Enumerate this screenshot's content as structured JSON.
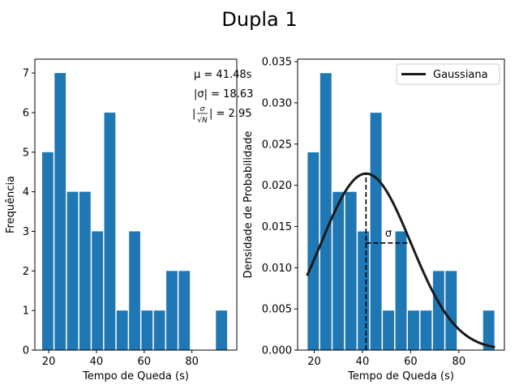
{
  "figure": {
    "suptitle": "Dupla 1"
  },
  "chart_data": [
    {
      "type": "bar",
      "bar_color": "#1f77b4",
      "xlabel": "Tempo de Queda (s)",
      "ylabel": "Frequência",
      "xlim": [
        14.2,
        98.8
      ],
      "ylim": [
        0,
        7.35
      ],
      "xticks": [
        20,
        40,
        60,
        80
      ],
      "yticks": [
        0,
        1,
        2,
        3,
        4,
        5,
        6,
        7
      ],
      "bin_edges": [
        17.0,
        22.2,
        27.4,
        32.6,
        37.8,
        43.0,
        48.2,
        53.4,
        58.6,
        63.8,
        69.0,
        74.2,
        79.4,
        84.6,
        89.8,
        95.0
      ],
      "values": [
        5,
        7,
        4,
        4,
        3,
        6,
        1,
        3,
        1,
        1,
        2,
        2,
        0,
        0,
        1
      ],
      "annotations": [
        {
          "text": "μ = 41.48s"
        },
        {
          "text": "|σ| = 18.63"
        },
        {
          "text_prefix": "|",
          "frac_num": "σ",
          "frac_den": "√N",
          "text_suffix": "| = 2.95"
        }
      ]
    },
    {
      "type": "bar",
      "bar_color": "#1f77b4",
      "xlabel": "Tempo de Queda (s)",
      "ylabel": "Densidade de Probabilidade",
      "xlim": [
        13.1,
        98.9
      ],
      "ylim": [
        0,
        0.0353
      ],
      "xticks": [
        20,
        40,
        60,
        80
      ],
      "yticks": [
        0.0,
        0.005,
        0.01,
        0.015,
        0.02,
        0.025,
        0.03,
        0.035
      ],
      "ytick_labels": [
        "0.000",
        "0.005",
        "0.010",
        "0.015",
        "0.020",
        "0.025",
        "0.030",
        "0.035"
      ],
      "bin_edges": [
        17.0,
        22.2,
        27.4,
        32.6,
        37.8,
        43.0,
        48.2,
        53.4,
        58.6,
        63.8,
        69.0,
        74.2,
        79.4,
        84.6,
        89.8,
        95.0
      ],
      "values": [
        0.024,
        0.0336,
        0.0192,
        0.0192,
        0.0144,
        0.0288,
        0.0048,
        0.0144,
        0.0048,
        0.0048,
        0.0096,
        0.0096,
        0.0,
        0.0,
        0.0048
      ],
      "gaussian": {
        "name": "Gaussiana",
        "color": "#1a1a1a",
        "mu": 41.48,
        "sigma": 18.63,
        "x_range": [
          17,
          95
        ]
      },
      "sigma_marker": {
        "label": "σ",
        "x0": 41.48,
        "x1": 60.11,
        "y": 0.013
      },
      "legend_placement": "top-right"
    }
  ]
}
